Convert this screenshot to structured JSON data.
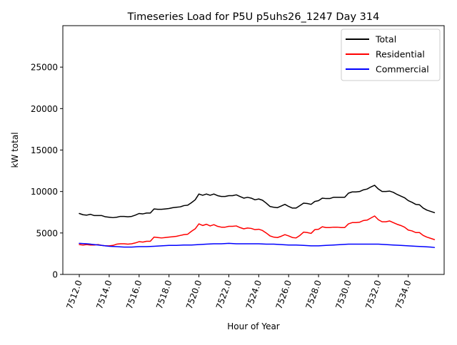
{
  "chart_data": {
    "type": "line",
    "title": "Timeseries Load for P5U p5uhs26_1247  Day 314",
    "xlabel": "Hour of Year",
    "ylabel": "kW total",
    "xlim": [
      7510.9,
      7536.4
    ],
    "ylim": [
      0,
      30000
    ],
    "xticks": [
      7512,
      7514,
      7516,
      7518,
      7520,
      7522,
      7524,
      7526,
      7528,
      7530,
      7532,
      7534
    ],
    "xtick_labels": [
      "7512.0",
      "7514.0",
      "7516.0",
      "7518.0",
      "7520.0",
      "7522.0",
      "7524.0",
      "7526.0",
      "7528.0",
      "7530.0",
      "7532.0",
      "7534.0"
    ],
    "yticks": [
      0,
      5000,
      10000,
      15000,
      20000,
      25000
    ],
    "ytick_labels": [
      "0",
      "5000",
      "10000",
      "15000",
      "20000",
      "25000"
    ],
    "grid": false,
    "legend_position": "top-right",
    "series": [
      {
        "name": "Total",
        "color": "#000000",
        "x": [
          7512,
          7512.25,
          7512.5,
          7512.75,
          7513,
          7513.25,
          7513.5,
          7513.75,
          7514,
          7514.25,
          7514.5,
          7514.75,
          7515,
          7515.25,
          7515.5,
          7515.75,
          7516,
          7516.25,
          7516.5,
          7516.75,
          7517,
          7517.25,
          7517.5,
          7517.75,
          7518,
          7518.25,
          7518.5,
          7518.75,
          7519,
          7519.25,
          7519.5,
          7519.75,
          7520,
          7520.25,
          7520.5,
          7520.75,
          7521,
          7521.25,
          7521.5,
          7521.75,
          7522,
          7522.25,
          7522.5,
          7522.75,
          7523,
          7523.25,
          7523.5,
          7523.75,
          7524,
          7524.25,
          7524.5,
          7524.75,
          7525,
          7525.25,
          7525.5,
          7525.75,
          7526,
          7526.25,
          7526.5,
          7526.75,
          7527,
          7527.25,
          7527.5,
          7527.75,
          7528,
          7528.25,
          7528.5,
          7528.75,
          7529,
          7529.25,
          7529.5,
          7529.75,
          7530,
          7530.25,
          7530.5,
          7530.75,
          7531,
          7531.25,
          7531.5,
          7531.75,
          7532,
          7532.25,
          7532.5,
          7532.75,
          7533,
          7533.25,
          7533.5,
          7533.75,
          7534,
          7534.25,
          7534.5,
          7534.75,
          7535,
          7535.25,
          7535.5,
          7535.75
        ],
        "values": [
          7350,
          7200,
          7150,
          7250,
          7100,
          7100,
          7100,
          6950,
          6900,
          6850,
          6900,
          7000,
          7000,
          6950,
          7000,
          7150,
          7350,
          7300,
          7400,
          7400,
          7900,
          7850,
          7850,
          7900,
          7950,
          8050,
          8100,
          8150,
          8300,
          8350,
          8650,
          9000,
          9700,
          9550,
          9700,
          9550,
          9700,
          9500,
          9400,
          9400,
          9500,
          9500,
          9600,
          9400,
          9200,
          9300,
          9200,
          9000,
          9100,
          8950,
          8600,
          8200,
          8100,
          8050,
          8250,
          8450,
          8200,
          8000,
          8000,
          8300,
          8600,
          8550,
          8450,
          8800,
          8900,
          9200,
          9150,
          9150,
          9300,
          9300,
          9300,
          9300,
          9800,
          9950,
          9950,
          10000,
          10200,
          10300,
          10550,
          10750,
          10300,
          10000,
          10000,
          10050,
          9900,
          9650,
          9450,
          9250,
          8900,
          8700,
          8450,
          8400,
          8000,
          7750,
          7600,
          7450
        ]
      },
      {
        "name": "Residential",
        "color": "#ff0000",
        "x": [
          7512,
          7512.25,
          7512.5,
          7512.75,
          7513,
          7513.25,
          7513.5,
          7513.75,
          7514,
          7514.25,
          7514.5,
          7514.75,
          7515,
          7515.25,
          7515.5,
          7515.75,
          7516,
          7516.25,
          7516.5,
          7516.75,
          7517,
          7517.25,
          7517.5,
          7517.75,
          7518,
          7518.25,
          7518.5,
          7518.75,
          7519,
          7519.25,
          7519.5,
          7519.75,
          7520,
          7520.25,
          7520.5,
          7520.75,
          7521,
          7521.25,
          7521.5,
          7521.75,
          7522,
          7522.25,
          7522.5,
          7522.75,
          7523,
          7523.25,
          7523.5,
          7523.75,
          7524,
          7524.25,
          7524.5,
          7524.75,
          7525,
          7525.25,
          7525.5,
          7525.75,
          7526,
          7526.25,
          7526.5,
          7526.75,
          7527,
          7527.25,
          7527.5,
          7527.75,
          7528,
          7528.25,
          7528.5,
          7528.75,
          7529,
          7529.25,
          7529.5,
          7529.75,
          7530,
          7530.25,
          7530.5,
          7530.75,
          7531,
          7531.25,
          7531.5,
          7531.75,
          7532,
          7532.25,
          7532.5,
          7532.75,
          7533,
          7533.25,
          7533.5,
          7533.75,
          7534,
          7534.25,
          7534.5,
          7534.75,
          7535,
          7535.25,
          7535.5,
          7535.75
        ],
        "values": [
          3600,
          3550,
          3600,
          3550,
          3550,
          3600,
          3500,
          3450,
          3450,
          3500,
          3650,
          3700,
          3700,
          3650,
          3700,
          3800,
          3950,
          3900,
          4000,
          4000,
          4500,
          4450,
          4400,
          4450,
          4500,
          4550,
          4600,
          4700,
          4800,
          4850,
          5200,
          5500,
          6100,
          5900,
          6050,
          5850,
          6000,
          5800,
          5700,
          5700,
          5800,
          5800,
          5850,
          5650,
          5500,
          5600,
          5550,
          5400,
          5450,
          5300,
          5000,
          4650,
          4500,
          4450,
          4600,
          4800,
          4650,
          4450,
          4400,
          4700,
          5100,
          5050,
          4950,
          5400,
          5450,
          5750,
          5650,
          5650,
          5700,
          5700,
          5650,
          5650,
          6100,
          6250,
          6250,
          6300,
          6500,
          6550,
          6800,
          7050,
          6600,
          6350,
          6350,
          6450,
          6250,
          6050,
          5900,
          5700,
          5350,
          5250,
          5050,
          5050,
          4700,
          4500,
          4350,
          4200
        ]
      },
      {
        "name": "Commercial",
        "color": "#0000ff",
        "x": [
          7512,
          7512.5,
          7513,
          7513.5,
          7514,
          7514.5,
          7515,
          7515.5,
          7516,
          7516.5,
          7517,
          7517.5,
          7518,
          7518.5,
          7519,
          7519.5,
          7520,
          7520.5,
          7521,
          7521.5,
          7522,
          7522.5,
          7523,
          7523.5,
          7524,
          7524.5,
          7525,
          7525.5,
          7526,
          7526.5,
          7527,
          7527.5,
          7528,
          7528.5,
          7529,
          7529.5,
          7530,
          7530.5,
          7531,
          7531.5,
          7532,
          7532.5,
          7533,
          7533.5,
          7534,
          7534.5,
          7535,
          7535.5,
          7535.75
        ],
        "values": [
          3750,
          3700,
          3600,
          3500,
          3400,
          3350,
          3300,
          3300,
          3350,
          3350,
          3400,
          3450,
          3500,
          3500,
          3550,
          3550,
          3600,
          3650,
          3700,
          3700,
          3750,
          3700,
          3700,
          3700,
          3700,
          3650,
          3650,
          3600,
          3550,
          3550,
          3500,
          3450,
          3450,
          3500,
          3550,
          3600,
          3650,
          3650,
          3650,
          3650,
          3650,
          3600,
          3550,
          3500,
          3450,
          3400,
          3350,
          3300,
          3250
        ]
      }
    ]
  }
}
